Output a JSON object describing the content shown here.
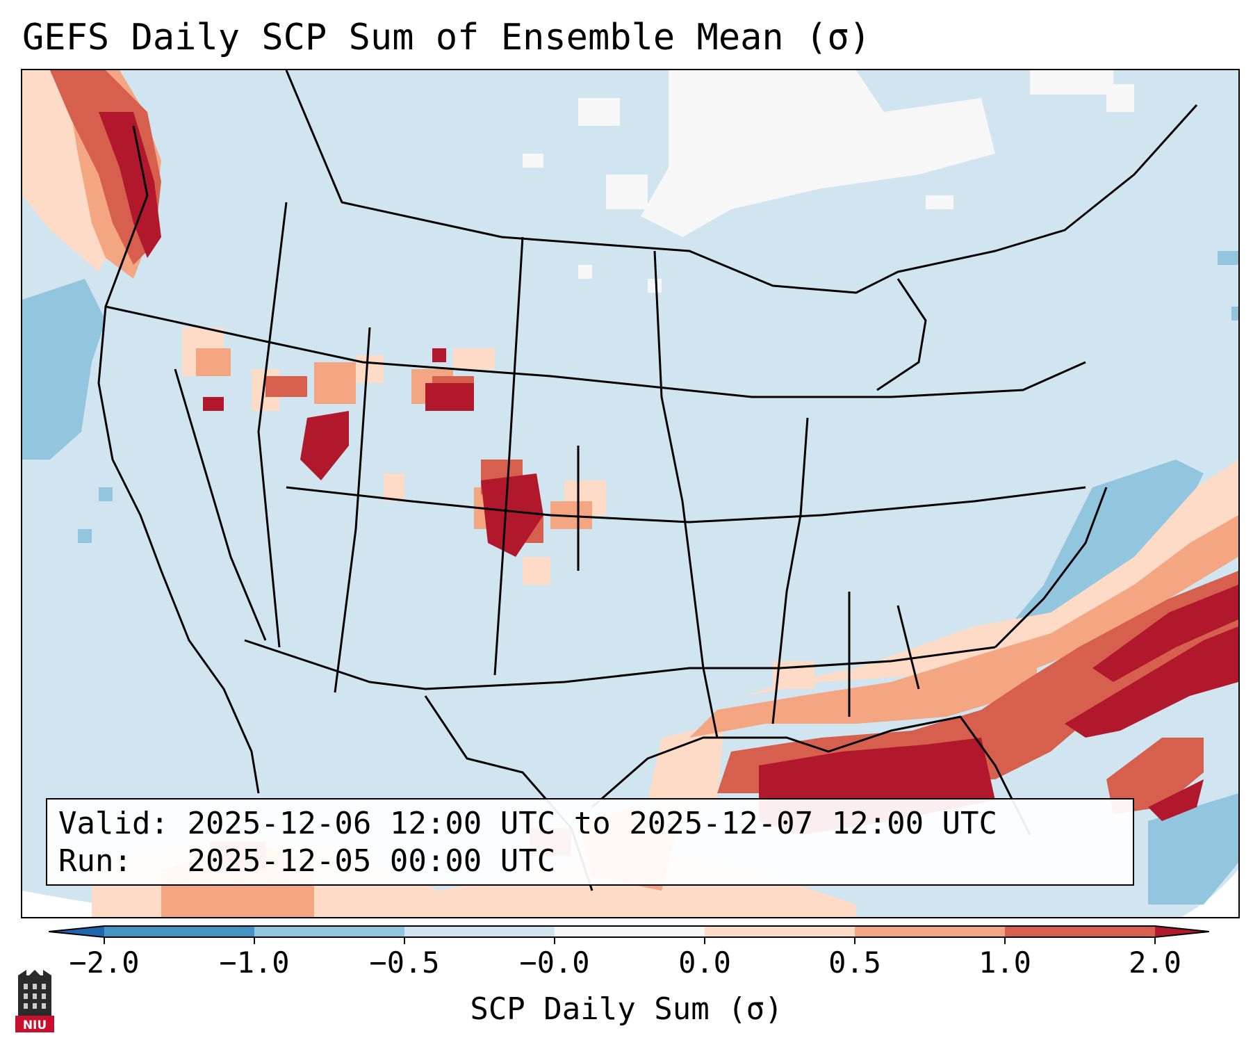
{
  "title": "GEFS Daily SCP Sum of Ensemble Mean (σ)",
  "info": {
    "valid_label": "Valid:",
    "valid_value": "2025-12-06 12:00 UTC to 2025-12-07 12:00 UTC",
    "run_label": "Run:",
    "run_value": "2025-12-05 00:00 UTC"
  },
  "colorbar": {
    "label": "SCP Daily Sum (σ)",
    "ticks": [
      "−2.0",
      "−1.0",
      "−0.5",
      "−0.0",
      "0.0",
      "0.5",
      "1.0",
      "2.0"
    ],
    "colors": {
      "below_min": "#2166ac",
      "c1": "#4393c3",
      "c2": "#92c5de",
      "c3": "#d1e5f0",
      "c4": "#f7f7f7",
      "c5": "#fddbc7",
      "c6": "#f4a582",
      "c7": "#d6604d",
      "above_max": "#b2182b"
    }
  },
  "logo": {
    "text": "NIU",
    "icon": "university-seal-icon"
  }
}
